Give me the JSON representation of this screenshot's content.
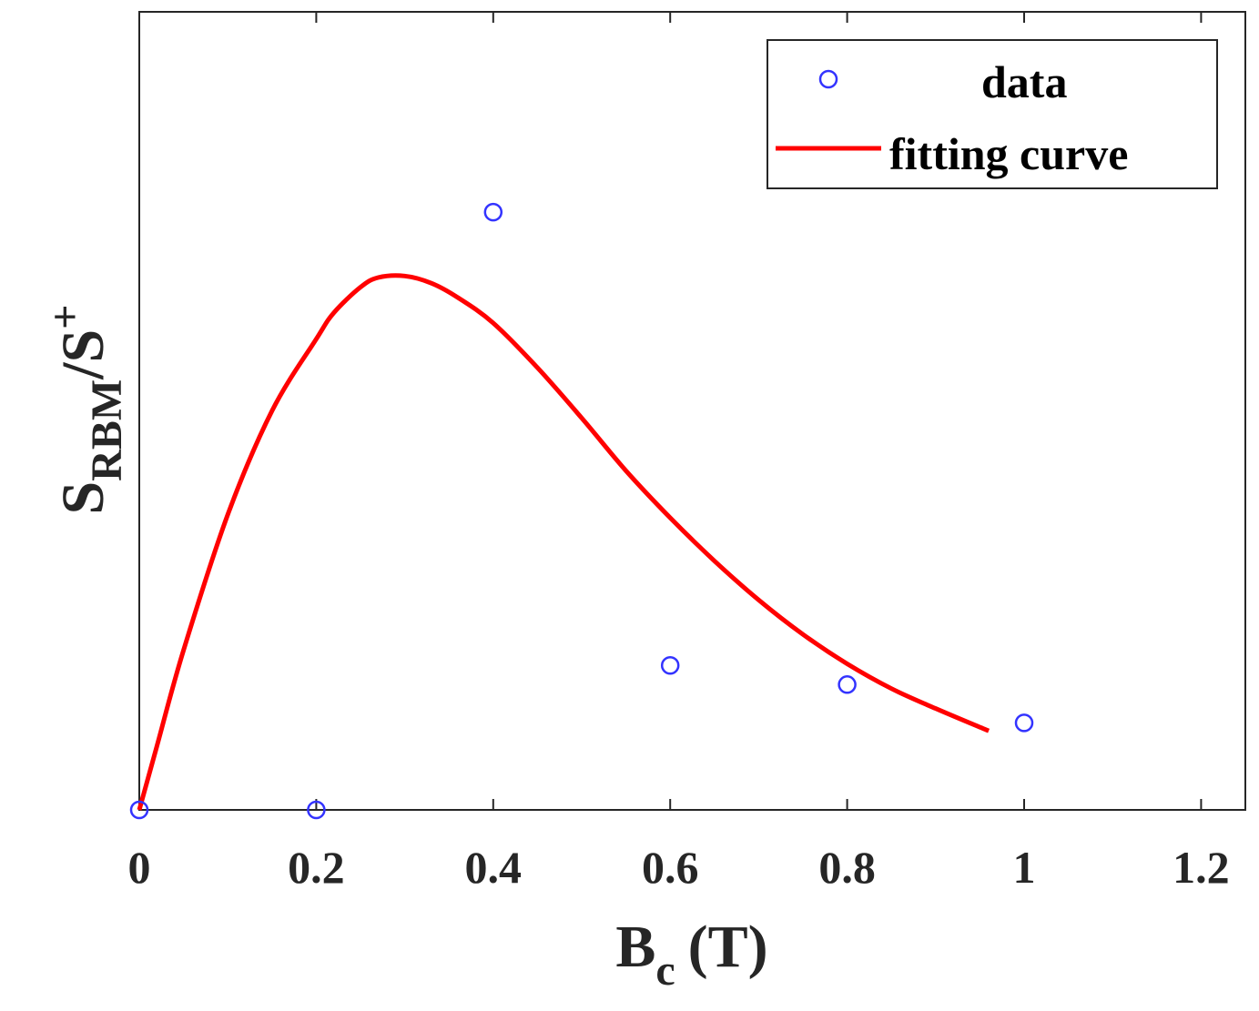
{
  "chart_data": {
    "type": "scatter",
    "title": "",
    "xlabel": {
      "main": "B",
      "sub": "c",
      "unit": "(T)"
    },
    "ylabel": {
      "main": "S",
      "sub": "RBM",
      "slash": "/S",
      "sup": "+"
    },
    "xlim": [
      0,
      1.25
    ],
    "ylim": [
      0,
      1.0
    ],
    "y_tick_labels_shown": false,
    "x_ticks": [
      0,
      0.2,
      0.4,
      0.6,
      0.8,
      1.0,
      1.2
    ],
    "x_tick_labels": [
      "0",
      "0.2",
      "0.4",
      "0.6",
      "0.8",
      "1",
      "1.2"
    ],
    "grid": false,
    "legend_position": "top-right",
    "series": [
      {
        "name": "data",
        "kind": "markers",
        "marker": "circle",
        "color": "#3333ff",
        "x": [
          0,
          0.2,
          0.4,
          0.6,
          0.8,
          1.0
        ],
        "y": [
          0.0,
          0.0,
          0.749,
          0.181,
          0.157,
          0.109
        ]
      },
      {
        "name": "fitting curve",
        "kind": "line",
        "color": "#ff0000",
        "x": [
          0,
          0.02,
          0.05,
          0.1,
          0.15,
          0.2,
          0.22,
          0.25,
          0.27,
          0.3,
          0.33,
          0.36,
          0.4,
          0.45,
          0.5,
          0.55,
          0.6,
          0.65,
          0.7,
          0.75,
          0.8,
          0.85,
          0.9,
          0.96
        ],
        "y": [
          0,
          0.08,
          0.2,
          0.37,
          0.5,
          0.59,
          0.623,
          0.655,
          0.667,
          0.669,
          0.66,
          0.642,
          0.61,
          0.554,
          0.491,
          0.425,
          0.366,
          0.312,
          0.263,
          0.22,
          0.183,
          0.152,
          0.127,
          0.099
        ]
      }
    ]
  }
}
